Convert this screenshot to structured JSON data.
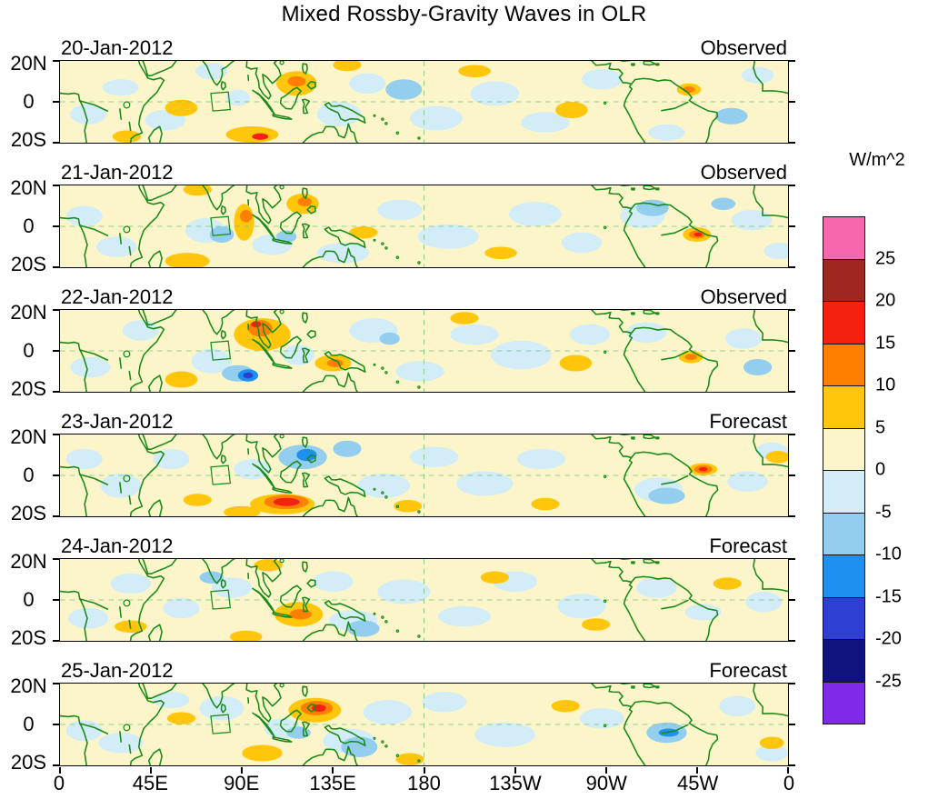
{
  "title": "Mixed Rossby-Gravity Waves in OLR",
  "colorbar": {
    "label": "W/m^2",
    "tick_labels": [
      "25",
      "20",
      "15",
      "10",
      "5",
      "0",
      "-5",
      "-10",
      "-15",
      "-20",
      "-25"
    ]
  },
  "x_axis": {
    "tick_labels": [
      "0",
      "45E",
      "90E",
      "135E",
      "180",
      "135W",
      "90W",
      "45W",
      "0"
    ]
  },
  "y_axis": {
    "tick_labels": [
      "20N",
      "0",
      "20S"
    ]
  },
  "chart_data": {
    "type": "heatmap",
    "units": "W/m^2",
    "levels": [
      -25,
      -20,
      -15,
      -10,
      -5,
      0,
      5,
      10,
      15,
      20,
      25
    ],
    "palette_low_to_high": [
      "#7E2AE8",
      "#10127E",
      "#2F3FD3",
      "#1E90F0",
      "#93CEEF",
      "#D2ECF8",
      "#FCF5CA",
      "#FFC60B",
      "#FF7F00",
      "#F52010",
      "#9E2720",
      "#F767AE"
    ],
    "coast_color": "#1b8a1b",
    "gridline_color": "#7cc47c",
    "box_color": "#1b8a1b",
    "lon_range": [
      0,
      360
    ],
    "lat_range": [
      -20,
      20
    ],
    "region_box": [
      [
        74.6,
        4.1
      ],
      [
        83.2,
        4.8
      ],
      [
        84.2,
        -3.8
      ],
      [
        75.6,
        -4.5
      ]
    ],
    "panels": [
      {
        "date": "20-Jan-2012",
        "mode": "Observed",
        "anomalies": [
          [
            14,
            -6,
            9,
            5,
            -2
          ],
          [
            30,
            7,
            9,
            4,
            -2
          ],
          [
            52,
            -9,
            10,
            5,
            -2
          ],
          [
            75,
            15,
            8,
            4,
            -2
          ],
          [
            88,
            2,
            6,
            4,
            -2
          ],
          [
            138,
            -6,
            11,
            6,
            -2
          ],
          [
            152,
            9,
            9,
            5,
            -2
          ],
          [
            170,
            6,
            9,
            5,
            -7
          ],
          [
            186,
            -8,
            13,
            6,
            -2
          ],
          [
            215,
            4,
            12,
            6,
            -2
          ],
          [
            240,
            -10,
            12,
            5,
            -2
          ],
          [
            268,
            11,
            10,
            5,
            -2
          ],
          [
            300,
            -15,
            9,
            4,
            -2
          ],
          [
            332,
            -7,
            8,
            4,
            -7
          ],
          [
            345,
            13,
            8,
            4,
            -2
          ],
          [
            33,
            -17,
            7,
            3,
            7
          ],
          [
            60,
            -3,
            8,
            4,
            7
          ],
          [
            95,
            -16,
            13,
            4,
            7
          ],
          [
            99,
            -17,
            4,
            1.6,
            16
          ],
          [
            117,
            9,
            10,
            6,
            7
          ],
          [
            117,
            10,
            4.5,
            2.5,
            12
          ],
          [
            142,
            18,
            7,
            3,
            7
          ],
          [
            205,
            15,
            8,
            3,
            7
          ],
          [
            253,
            -4,
            8,
            4,
            7
          ],
          [
            311,
            6,
            6,
            3,
            7
          ],
          [
            311,
            6,
            3,
            1.5,
            12
          ]
        ]
      },
      {
        "date": "21-Jan-2012",
        "mode": "Observed",
        "anomalies": [
          [
            12,
            5,
            9,
            5,
            -2
          ],
          [
            28,
            -10,
            10,
            5,
            -2
          ],
          [
            72,
            -2,
            10,
            6,
            -2
          ],
          [
            80,
            -4,
            6,
            4,
            -7
          ],
          [
            105,
            -9,
            10,
            5,
            -2
          ],
          [
            112,
            -5,
            5,
            3,
            -7
          ],
          [
            140,
            -13,
            13,
            5,
            -2
          ],
          [
            168,
            8,
            11,
            5,
            -2
          ],
          [
            192,
            -5,
            15,
            6,
            -2
          ],
          [
            235,
            6,
            13,
            6,
            -2
          ],
          [
            258,
            -8,
            10,
            5,
            -2
          ],
          [
            288,
            5,
            11,
            6,
            -2
          ],
          [
            293,
            9,
            8,
            4,
            -7
          ],
          [
            328,
            11,
            6,
            3,
            -7
          ],
          [
            342,
            3,
            10,
            5,
            -2
          ],
          [
            356,
            -12,
            8,
            4,
            -2
          ],
          [
            63,
            -17,
            11,
            4,
            7
          ],
          [
            68,
            18,
            7,
            3,
            7
          ],
          [
            91,
            2,
            5,
            9,
            7
          ],
          [
            92,
            5,
            3,
            3,
            12
          ],
          [
            120,
            11,
            8,
            5,
            7
          ],
          [
            121,
            12,
            3.5,
            2.2,
            12
          ],
          [
            150,
            -3,
            7,
            3,
            7
          ],
          [
            218,
            -13,
            8,
            3,
            7
          ],
          [
            315,
            -4,
            7,
            3.5,
            7
          ],
          [
            315,
            -4,
            4,
            2,
            12
          ],
          [
            315.5,
            -4,
            2,
            1,
            16
          ]
        ]
      },
      {
        "date": "22-Jan-2012",
        "mode": "Observed",
        "anomalies": [
          [
            15,
            -8,
            10,
            5,
            -2
          ],
          [
            40,
            10,
            9,
            5,
            -2
          ],
          [
            75,
            -5,
            10,
            6,
            -2
          ],
          [
            88,
            -11,
            8,
            4,
            -7
          ],
          [
            93,
            -12,
            5,
            3,
            -12
          ],
          [
            93,
            -12,
            2.5,
            1.5,
            -17
          ],
          [
            118,
            -2,
            8,
            5,
            -2
          ],
          [
            155,
            10,
            12,
            6,
            -2
          ],
          [
            163,
            6,
            5,
            3,
            -7
          ],
          [
            178,
            -10,
            12,
            5,
            -2
          ],
          [
            205,
            8,
            12,
            5,
            -2
          ],
          [
            228,
            -2,
            15,
            7,
            -2
          ],
          [
            262,
            8,
            10,
            5,
            -2
          ],
          [
            290,
            9,
            10,
            5,
            -2
          ],
          [
            338,
            6,
            9,
            5,
            -2
          ],
          [
            345,
            -8,
            7,
            4,
            -7
          ],
          [
            100,
            8,
            14,
            8,
            7
          ],
          [
            99,
            11,
            6,
            4,
            12
          ],
          [
            97,
            13,
            2.5,
            1.5,
            16
          ],
          [
            60,
            -14,
            8,
            4,
            7
          ],
          [
            135,
            -6,
            9,
            4,
            7
          ],
          [
            136,
            -6,
            4,
            2,
            12
          ],
          [
            200,
            16,
            7,
            3,
            7
          ],
          [
            255,
            -6,
            8,
            4,
            7
          ],
          [
            312,
            -3,
            6,
            3,
            7
          ],
          [
            312,
            -3,
            3,
            1.5,
            12
          ]
        ]
      },
      {
        "date": "23-Jan-2012",
        "mode": "Forecast",
        "anomalies": [
          [
            12,
            8,
            9,
            5,
            -2
          ],
          [
            30,
            -5,
            10,
            6,
            -2
          ],
          [
            55,
            8,
            9,
            5,
            -2
          ],
          [
            95,
            3,
            9,
            5,
            -2
          ],
          [
            120,
            9,
            12,
            6,
            -7
          ],
          [
            122,
            10,
            5,
            3,
            -12
          ],
          [
            142,
            13,
            7,
            4,
            -7
          ],
          [
            160,
            -5,
            13,
            6,
            -2
          ],
          [
            185,
            9,
            12,
            5,
            -2
          ],
          [
            210,
            -4,
            14,
            6,
            -2
          ],
          [
            238,
            8,
            12,
            5,
            -2
          ],
          [
            296,
            -7,
            12,
            6,
            -2
          ],
          [
            300,
            -10,
            9,
            4,
            -7
          ],
          [
            340,
            -3,
            10,
            5,
            -2
          ],
          [
            352,
            12,
            8,
            4,
            -2
          ],
          [
            110,
            -14,
            16,
            5,
            7
          ],
          [
            112,
            -13,
            11,
            3.5,
            12
          ],
          [
            112,
            -13,
            6.5,
            2,
            16
          ],
          [
            90,
            -18,
            9,
            3,
            7
          ],
          [
            68,
            -12,
            7,
            3,
            7
          ],
          [
            172,
            -15,
            7,
            3,
            7
          ],
          [
            240,
            -14,
            7,
            3,
            7
          ],
          [
            318,
            3,
            7,
            3,
            7
          ],
          [
            318,
            3,
            4.5,
            2,
            12
          ],
          [
            318,
            3,
            2.2,
            1,
            17
          ],
          [
            355,
            9,
            6,
            3,
            7
          ]
        ]
      },
      {
        "date": "24-Jan-2012",
        "mode": "Forecast",
        "anomalies": [
          [
            14,
            -9,
            10,
            5,
            -2
          ],
          [
            35,
            8,
            10,
            5,
            -2
          ],
          [
            60,
            -4,
            9,
            5,
            -2
          ],
          [
            85,
            6,
            10,
            5,
            -2
          ],
          [
            75,
            11,
            6,
            3,
            -7
          ],
          [
            135,
            9,
            10,
            5,
            -2
          ],
          [
            145,
            -10,
            12,
            5,
            -2
          ],
          [
            150,
            -14,
            8,
            4,
            -7
          ],
          [
            170,
            4,
            13,
            6,
            -2
          ],
          [
            200,
            -8,
            13,
            5,
            -2
          ],
          [
            225,
            9,
            11,
            5,
            -2
          ],
          [
            258,
            -3,
            12,
            6,
            -2
          ],
          [
            295,
            6,
            10,
            5,
            -2
          ],
          [
            318,
            -6,
            9,
            4,
            -2
          ],
          [
            348,
            -1,
            9,
            5,
            -2
          ],
          [
            35,
            -13,
            8,
            3,
            7
          ],
          [
            103,
            17,
            7,
            3,
            7
          ],
          [
            118,
            -7,
            12,
            6,
            7
          ],
          [
            119,
            -7,
            5.5,
            2.5,
            12
          ],
          [
            92,
            -18,
            8,
            3,
            7
          ],
          [
            215,
            11,
            7,
            3,
            7
          ],
          [
            265,
            -12,
            7,
            3,
            7
          ],
          [
            330,
            8,
            7,
            3,
            7
          ]
        ]
      },
      {
        "date": "25-Jan-2012",
        "mode": "Forecast",
        "anomalies": [
          [
            12,
            -3,
            9,
            5,
            -2
          ],
          [
            30,
            -9,
            11,
            5,
            -2
          ],
          [
            55,
            12,
            9,
            4,
            -2
          ],
          [
            80,
            8,
            11,
            6,
            -2
          ],
          [
            110,
            -2,
            9,
            5,
            -2
          ],
          [
            118,
            -4,
            6,
            3,
            -7
          ],
          [
            143,
            -8,
            13,
            6,
            -2
          ],
          [
            148,
            -11,
            9,
            5,
            -7
          ],
          [
            162,
            6,
            12,
            6,
            -2
          ],
          [
            190,
            11,
            11,
            5,
            -2
          ],
          [
            220,
            -5,
            15,
            6,
            -2
          ],
          [
            268,
            3,
            11,
            5,
            -2
          ],
          [
            300,
            -4,
            10,
            5,
            -7
          ],
          [
            301,
            -4,
            5,
            2,
            -12
          ],
          [
            335,
            9,
            9,
            5,
            -2
          ],
          [
            352,
            -14,
            8,
            4,
            -2
          ],
          [
            60,
            3,
            7,
            3,
            7
          ],
          [
            100,
            -14,
            10,
            4,
            7
          ],
          [
            126,
            7,
            13,
            6,
            7
          ],
          [
            127,
            8,
            8,
            3.5,
            12
          ],
          [
            128,
            8,
            3.5,
            1.8,
            16
          ],
          [
            173,
            -17,
            7,
            3,
            7
          ],
          [
            250,
            9,
            7,
            3,
            7
          ],
          [
            352,
            -9,
            6,
            3,
            7
          ]
        ]
      }
    ]
  }
}
